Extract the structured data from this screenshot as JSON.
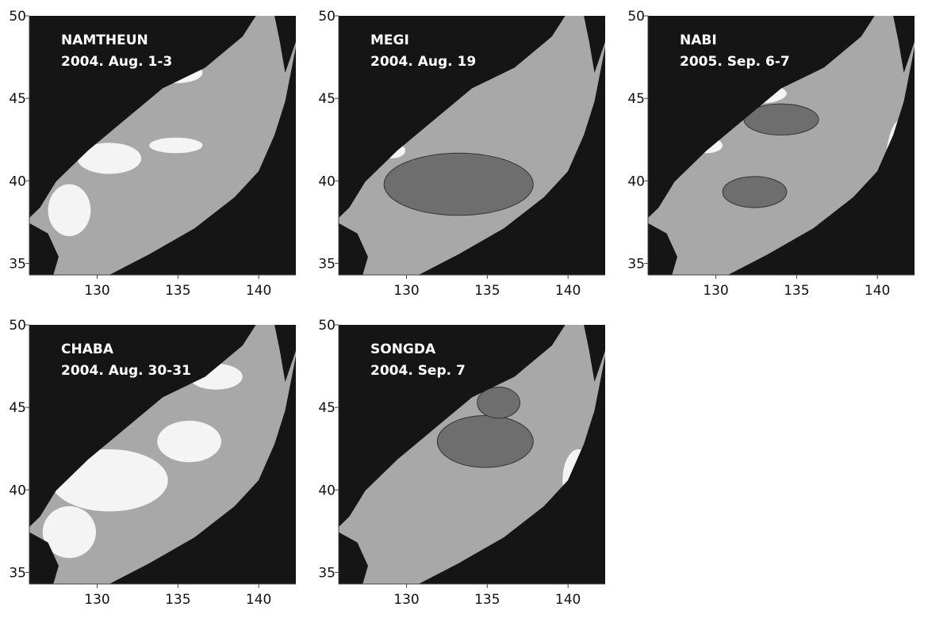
{
  "axes": {
    "xlim": [
      125.8,
      142.3
    ],
    "ylim": [
      34.3,
      50
    ],
    "xticks": [
      130,
      135,
      140
    ],
    "yticks": [
      35,
      40,
      45,
      50
    ]
  },
  "panels": [
    {
      "name": "NAMTHEUN",
      "date": "2004. Aug. 1-3"
    },
    {
      "name": "MEGI",
      "date": "2004. Aug. 19"
    },
    {
      "name": "NABI",
      "date": "2005. Sep. 6-7"
    },
    {
      "name": "CHABA",
      "date": "2004. Aug. 30-31"
    },
    {
      "name": "SONGDA",
      "date": "2004. Sep. 7"
    }
  ]
}
